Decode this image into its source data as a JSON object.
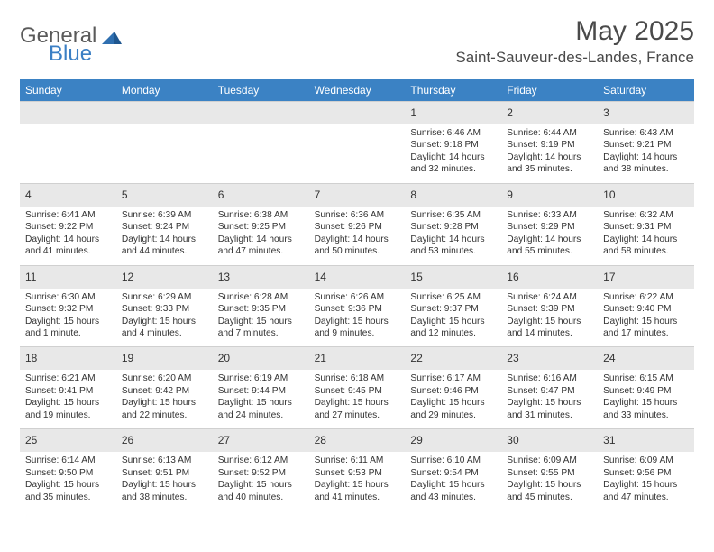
{
  "logo": {
    "word1": "General",
    "word2": "Blue"
  },
  "title": "May 2025",
  "location": "Saint-Sauveur-des-Landes, France",
  "colors": {
    "header_bg": "#3b82c4",
    "daynum_bg": "#e8e8e8",
    "text": "#333333",
    "logo_gray": "#5a5a5a",
    "logo_blue": "#3b7fc4"
  },
  "daysOfWeek": [
    "Sunday",
    "Monday",
    "Tuesday",
    "Wednesday",
    "Thursday",
    "Friday",
    "Saturday"
  ],
  "weeks": [
    [
      {
        "num": "",
        "sunrise": "",
        "sunset": "",
        "daylight": ""
      },
      {
        "num": "",
        "sunrise": "",
        "sunset": "",
        "daylight": ""
      },
      {
        "num": "",
        "sunrise": "",
        "sunset": "",
        "daylight": ""
      },
      {
        "num": "",
        "sunrise": "",
        "sunset": "",
        "daylight": ""
      },
      {
        "num": "1",
        "sunrise": "Sunrise: 6:46 AM",
        "sunset": "Sunset: 9:18 PM",
        "daylight": "Daylight: 14 hours and 32 minutes."
      },
      {
        "num": "2",
        "sunrise": "Sunrise: 6:44 AM",
        "sunset": "Sunset: 9:19 PM",
        "daylight": "Daylight: 14 hours and 35 minutes."
      },
      {
        "num": "3",
        "sunrise": "Sunrise: 6:43 AM",
        "sunset": "Sunset: 9:21 PM",
        "daylight": "Daylight: 14 hours and 38 minutes."
      }
    ],
    [
      {
        "num": "4",
        "sunrise": "Sunrise: 6:41 AM",
        "sunset": "Sunset: 9:22 PM",
        "daylight": "Daylight: 14 hours and 41 minutes."
      },
      {
        "num": "5",
        "sunrise": "Sunrise: 6:39 AM",
        "sunset": "Sunset: 9:24 PM",
        "daylight": "Daylight: 14 hours and 44 minutes."
      },
      {
        "num": "6",
        "sunrise": "Sunrise: 6:38 AM",
        "sunset": "Sunset: 9:25 PM",
        "daylight": "Daylight: 14 hours and 47 minutes."
      },
      {
        "num": "7",
        "sunrise": "Sunrise: 6:36 AM",
        "sunset": "Sunset: 9:26 PM",
        "daylight": "Daylight: 14 hours and 50 minutes."
      },
      {
        "num": "8",
        "sunrise": "Sunrise: 6:35 AM",
        "sunset": "Sunset: 9:28 PM",
        "daylight": "Daylight: 14 hours and 53 minutes."
      },
      {
        "num": "9",
        "sunrise": "Sunrise: 6:33 AM",
        "sunset": "Sunset: 9:29 PM",
        "daylight": "Daylight: 14 hours and 55 minutes."
      },
      {
        "num": "10",
        "sunrise": "Sunrise: 6:32 AM",
        "sunset": "Sunset: 9:31 PM",
        "daylight": "Daylight: 14 hours and 58 minutes."
      }
    ],
    [
      {
        "num": "11",
        "sunrise": "Sunrise: 6:30 AM",
        "sunset": "Sunset: 9:32 PM",
        "daylight": "Daylight: 15 hours and 1 minute."
      },
      {
        "num": "12",
        "sunrise": "Sunrise: 6:29 AM",
        "sunset": "Sunset: 9:33 PM",
        "daylight": "Daylight: 15 hours and 4 minutes."
      },
      {
        "num": "13",
        "sunrise": "Sunrise: 6:28 AM",
        "sunset": "Sunset: 9:35 PM",
        "daylight": "Daylight: 15 hours and 7 minutes."
      },
      {
        "num": "14",
        "sunrise": "Sunrise: 6:26 AM",
        "sunset": "Sunset: 9:36 PM",
        "daylight": "Daylight: 15 hours and 9 minutes."
      },
      {
        "num": "15",
        "sunrise": "Sunrise: 6:25 AM",
        "sunset": "Sunset: 9:37 PM",
        "daylight": "Daylight: 15 hours and 12 minutes."
      },
      {
        "num": "16",
        "sunrise": "Sunrise: 6:24 AM",
        "sunset": "Sunset: 9:39 PM",
        "daylight": "Daylight: 15 hours and 14 minutes."
      },
      {
        "num": "17",
        "sunrise": "Sunrise: 6:22 AM",
        "sunset": "Sunset: 9:40 PM",
        "daylight": "Daylight: 15 hours and 17 minutes."
      }
    ],
    [
      {
        "num": "18",
        "sunrise": "Sunrise: 6:21 AM",
        "sunset": "Sunset: 9:41 PM",
        "daylight": "Daylight: 15 hours and 19 minutes."
      },
      {
        "num": "19",
        "sunrise": "Sunrise: 6:20 AM",
        "sunset": "Sunset: 9:42 PM",
        "daylight": "Daylight: 15 hours and 22 minutes."
      },
      {
        "num": "20",
        "sunrise": "Sunrise: 6:19 AM",
        "sunset": "Sunset: 9:44 PM",
        "daylight": "Daylight: 15 hours and 24 minutes."
      },
      {
        "num": "21",
        "sunrise": "Sunrise: 6:18 AM",
        "sunset": "Sunset: 9:45 PM",
        "daylight": "Daylight: 15 hours and 27 minutes."
      },
      {
        "num": "22",
        "sunrise": "Sunrise: 6:17 AM",
        "sunset": "Sunset: 9:46 PM",
        "daylight": "Daylight: 15 hours and 29 minutes."
      },
      {
        "num": "23",
        "sunrise": "Sunrise: 6:16 AM",
        "sunset": "Sunset: 9:47 PM",
        "daylight": "Daylight: 15 hours and 31 minutes."
      },
      {
        "num": "24",
        "sunrise": "Sunrise: 6:15 AM",
        "sunset": "Sunset: 9:49 PM",
        "daylight": "Daylight: 15 hours and 33 minutes."
      }
    ],
    [
      {
        "num": "25",
        "sunrise": "Sunrise: 6:14 AM",
        "sunset": "Sunset: 9:50 PM",
        "daylight": "Daylight: 15 hours and 35 minutes."
      },
      {
        "num": "26",
        "sunrise": "Sunrise: 6:13 AM",
        "sunset": "Sunset: 9:51 PM",
        "daylight": "Daylight: 15 hours and 38 minutes."
      },
      {
        "num": "27",
        "sunrise": "Sunrise: 6:12 AM",
        "sunset": "Sunset: 9:52 PM",
        "daylight": "Daylight: 15 hours and 40 minutes."
      },
      {
        "num": "28",
        "sunrise": "Sunrise: 6:11 AM",
        "sunset": "Sunset: 9:53 PM",
        "daylight": "Daylight: 15 hours and 41 minutes."
      },
      {
        "num": "29",
        "sunrise": "Sunrise: 6:10 AM",
        "sunset": "Sunset: 9:54 PM",
        "daylight": "Daylight: 15 hours and 43 minutes."
      },
      {
        "num": "30",
        "sunrise": "Sunrise: 6:09 AM",
        "sunset": "Sunset: 9:55 PM",
        "daylight": "Daylight: 15 hours and 45 minutes."
      },
      {
        "num": "31",
        "sunrise": "Sunrise: 6:09 AM",
        "sunset": "Sunset: 9:56 PM",
        "daylight": "Daylight: 15 hours and 47 minutes."
      }
    ]
  ]
}
